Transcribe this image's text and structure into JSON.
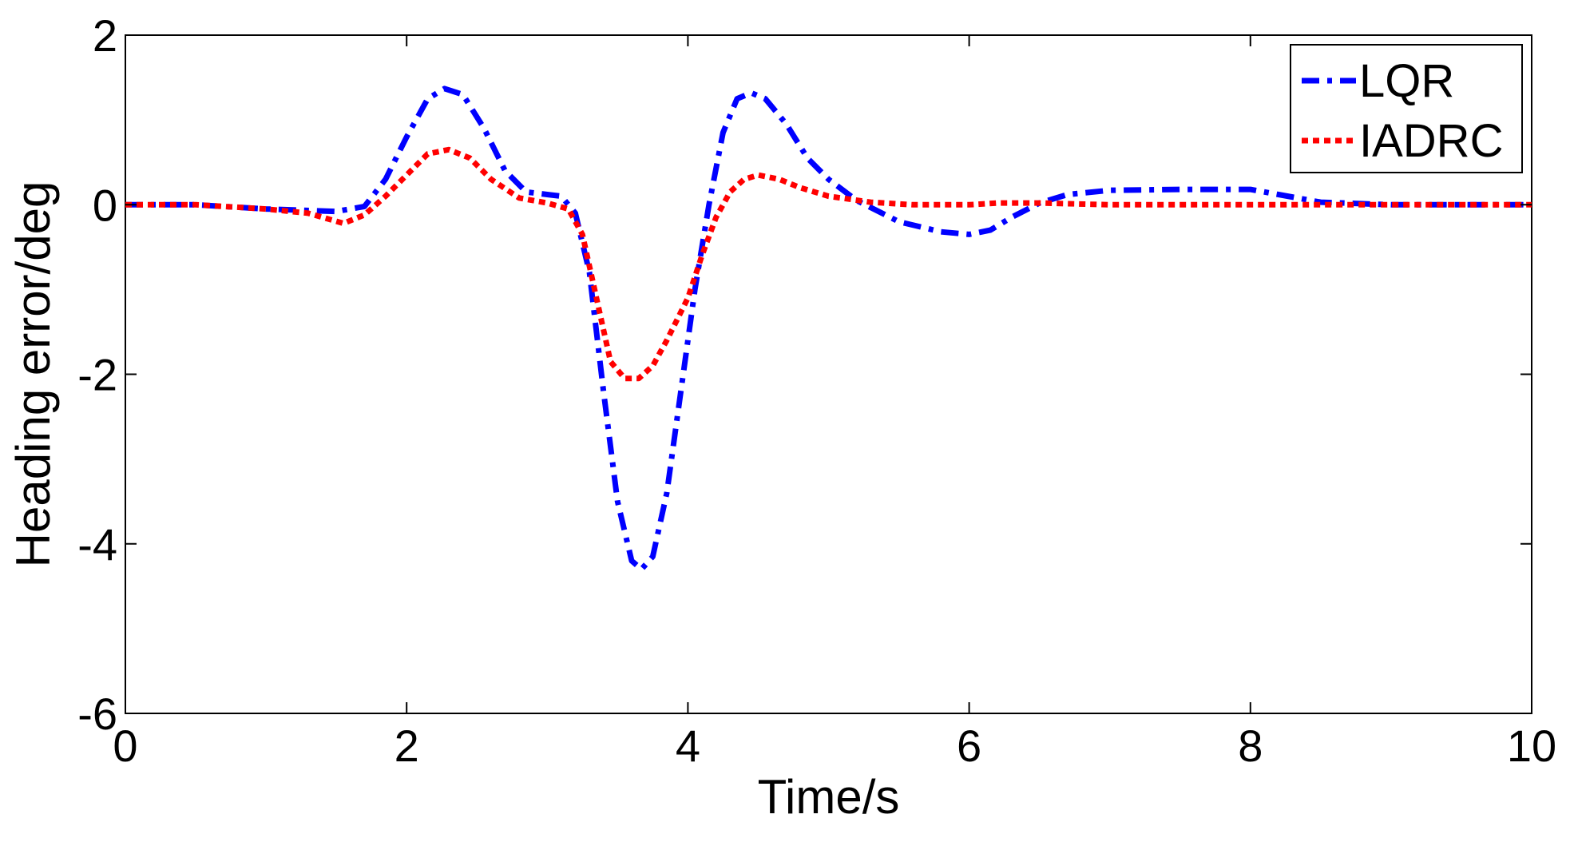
{
  "chart_data": {
    "type": "line",
    "title": "",
    "xlabel": "Time/s",
    "ylabel": "Heading error/deg",
    "xlim": [
      0,
      10
    ],
    "ylim": [
      -6,
      2
    ],
    "xticks": [
      0,
      2,
      4,
      6,
      8,
      10
    ],
    "yticks": [
      -6,
      -4,
      -2,
      0,
      2
    ],
    "grid": false,
    "legend_position": "top-right",
    "series": [
      {
        "name": "LQR",
        "color": "#0000ff",
        "style": "dash-dot",
        "points": [
          [
            0.0,
            0.0
          ],
          [
            0.5,
            0.0
          ],
          [
            1.0,
            -0.05
          ],
          [
            1.5,
            -0.08
          ],
          [
            1.7,
            -0.02
          ],
          [
            1.85,
            0.3
          ],
          [
            2.0,
            0.8
          ],
          [
            2.15,
            1.25
          ],
          [
            2.27,
            1.37
          ],
          [
            2.4,
            1.3
          ],
          [
            2.55,
            0.9
          ],
          [
            2.7,
            0.4
          ],
          [
            2.85,
            0.15
          ],
          [
            3.0,
            0.12
          ],
          [
            3.1,
            0.1
          ],
          [
            3.2,
            -0.1
          ],
          [
            3.3,
            -0.8
          ],
          [
            3.4,
            -2.2
          ],
          [
            3.5,
            -3.5
          ],
          [
            3.6,
            -4.2
          ],
          [
            3.67,
            -4.3
          ],
          [
            3.75,
            -4.15
          ],
          [
            3.85,
            -3.4
          ],
          [
            3.95,
            -2.2
          ],
          [
            4.05,
            -1.0
          ],
          [
            4.15,
            0.0
          ],
          [
            4.25,
            0.85
          ],
          [
            4.35,
            1.25
          ],
          [
            4.45,
            1.32
          ],
          [
            4.55,
            1.25
          ],
          [
            4.7,
            0.95
          ],
          [
            4.85,
            0.55
          ],
          [
            5.0,
            0.3
          ],
          [
            5.2,
            0.05
          ],
          [
            5.5,
            -0.2
          ],
          [
            5.8,
            -0.32
          ],
          [
            6.0,
            -0.35
          ],
          [
            6.15,
            -0.3
          ],
          [
            6.3,
            -0.15
          ],
          [
            6.5,
            0.02
          ],
          [
            6.7,
            0.12
          ],
          [
            7.0,
            0.17
          ],
          [
            7.5,
            0.18
          ],
          [
            8.0,
            0.18
          ],
          [
            8.2,
            0.12
          ],
          [
            8.5,
            0.03
          ],
          [
            9.0,
            0.0
          ],
          [
            9.5,
            0.0
          ],
          [
            10.0,
            0.0
          ]
        ]
      },
      {
        "name": "IADRC",
        "color": "#ff0000",
        "style": "dotted",
        "points": [
          [
            0.0,
            0.0
          ],
          [
            0.5,
            0.0
          ],
          [
            1.0,
            -0.05
          ],
          [
            1.3,
            -0.1
          ],
          [
            1.55,
            -0.22
          ],
          [
            1.7,
            -0.12
          ],
          [
            1.85,
            0.1
          ],
          [
            2.0,
            0.35
          ],
          [
            2.15,
            0.6
          ],
          [
            2.3,
            0.65
          ],
          [
            2.45,
            0.55
          ],
          [
            2.6,
            0.3
          ],
          [
            2.8,
            0.08
          ],
          [
            3.0,
            0.02
          ],
          [
            3.15,
            -0.05
          ],
          [
            3.25,
            -0.35
          ],
          [
            3.35,
            -1.1
          ],
          [
            3.45,
            -1.85
          ],
          [
            3.55,
            -2.05
          ],
          [
            3.65,
            -2.05
          ],
          [
            3.75,
            -1.9
          ],
          [
            3.85,
            -1.6
          ],
          [
            4.0,
            -1.1
          ],
          [
            4.1,
            -0.6
          ],
          [
            4.2,
            -0.15
          ],
          [
            4.3,
            0.15
          ],
          [
            4.4,
            0.3
          ],
          [
            4.5,
            0.35
          ],
          [
            4.65,
            0.3
          ],
          [
            4.8,
            0.2
          ],
          [
            5.0,
            0.1
          ],
          [
            5.3,
            0.03
          ],
          [
            5.6,
            0.0
          ],
          [
            6.0,
            0.0
          ],
          [
            6.2,
            0.02
          ],
          [
            6.5,
            0.02
          ],
          [
            7.0,
            0.0
          ],
          [
            8.0,
            0.0
          ],
          [
            9.0,
            0.0
          ],
          [
            10.0,
            0.0
          ]
        ]
      }
    ]
  }
}
